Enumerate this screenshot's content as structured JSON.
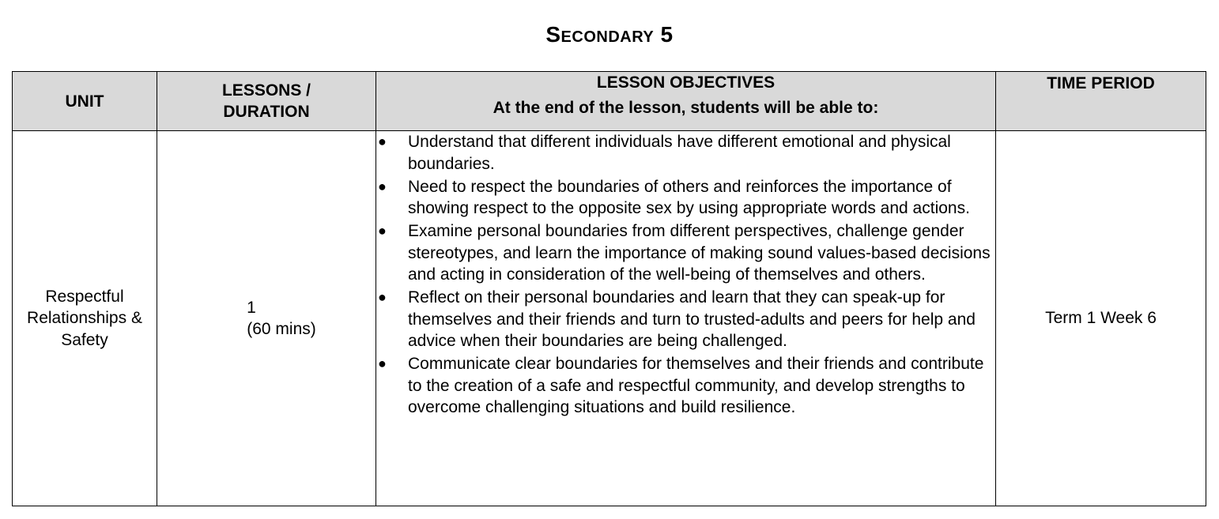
{
  "page": {
    "title": "Secondary 5"
  },
  "table": {
    "headers": {
      "unit": "UNIT",
      "lessons": "LESSONS / DURATION",
      "objectives_title": "LESSON OBJECTIVES",
      "objectives_subtitle": "At the end of the lesson, students will be able to:",
      "time_period": "TIME PERIOD"
    },
    "rows": [
      {
        "unit": "Respectful Relationships & Safety",
        "lessons_count": "1",
        "lessons_duration": "(60 mins)",
        "objectives": [
          "Understand that different individuals have different emotional and physical boundaries.",
          "Need to respect the boundaries of others and reinforces the importance of showing respect to the opposite sex by using appropriate words and actions.",
          "Examine personal boundaries from different perspectives, challenge gender stereotypes, and learn the importance of making sound values-based decisions and acting in consideration of the well-being of themselves and others.",
          "Reflect on their personal boundaries and learn that they can speak-up for themselves and their friends and turn to trusted-adults and peers for help and advice when their boundaries are being challenged.",
          "Communicate clear boundaries for themselves and their friends and contribute to the creation of a safe and respectful community, and develop strengths to overcome challenging situations and build resilience."
        ],
        "time_period": "Term 1 Week 6"
      }
    ]
  }
}
